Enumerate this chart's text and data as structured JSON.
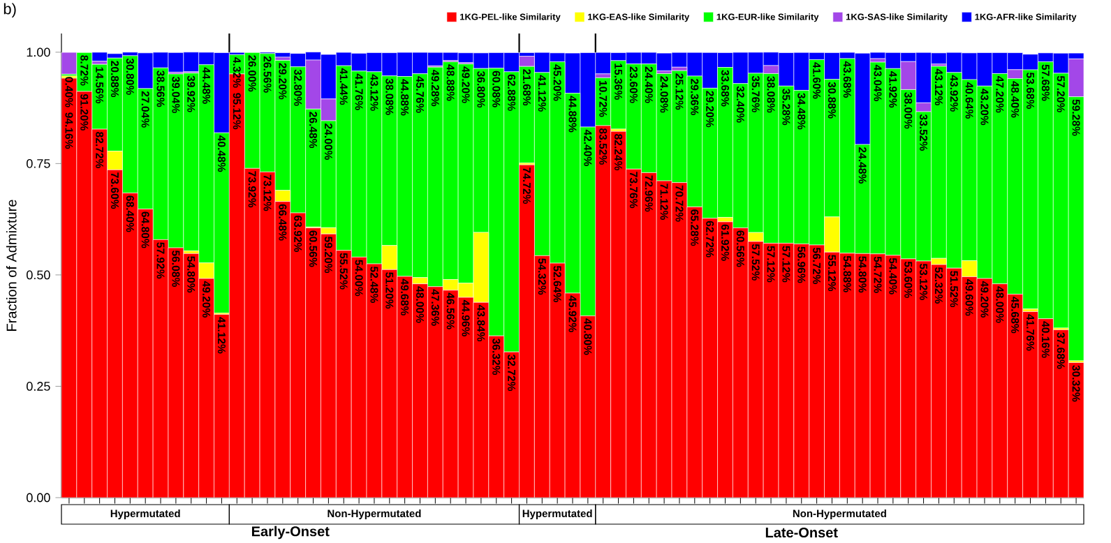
{
  "chart_data": {
    "type": "bar",
    "stacked": true,
    "ylabel": "Fraction of Admixture",
    "categories": [
      null,
      null,
      null,
      null,
      null,
      null,
      null,
      null,
      null,
      null,
      null,
      null,
      null,
      null,
      null,
      null,
      null,
      null,
      null,
      null,
      null,
      null,
      null,
      null,
      null,
      null,
      null,
      null,
      null,
      null,
      null,
      null,
      null,
      null,
      null,
      null,
      null,
      null,
      null,
      null,
      null,
      null,
      null,
      null,
      null,
      null,
      null,
      null,
      null,
      null,
      null,
      null,
      null,
      null,
      null,
      null,
      null,
      null,
      null,
      null,
      null,
      null,
      null,
      null,
      null,
      null,
      null
    ],
    "ylim": [
      0,
      1.042
    ],
    "yticks": [
      {
        "value": 0,
        "label": "0.00"
      },
      {
        "value": 0.25,
        "label": "0.25"
      },
      {
        "value": 0.5,
        "label": "0.50"
      },
      {
        "value": 0.75,
        "label": "0.75"
      },
      {
        "value": 1,
        "label": "1.00"
      }
    ],
    "legend": "top",
    "series": [
      {
        "name": "1KG-PEL-like Similarity",
        "color": "#ff0000",
        "values": [
          0.9416,
          0.912,
          0.8272,
          0.736,
          0.684,
          0.648,
          0.5792,
          0.5608,
          0.548,
          0.492,
          0.4112,
          0.9512,
          0.7392,
          0.7312,
          0.6648,
          0.6392,
          0.6056,
          0.592,
          0.5552,
          0.54,
          0.5248,
          0.512,
          0.4968,
          0.48,
          0.4736,
          0.4656,
          0.4496,
          0.4384,
          0.3632,
          0.3272,
          0.7472,
          0.5432,
          0.5264,
          0.4592,
          0.408,
          0.8352,
          0.8224,
          0.7376,
          0.7296,
          0.7112,
          0.7072,
          0.6528,
          0.6272,
          0.6192,
          0.6056,
          0.5752,
          0.5712,
          0.5712,
          0.5696,
          0.5672,
          0.5512,
          0.5488,
          0.548,
          0.5472,
          0.544,
          0.536,
          0.5312,
          0.5232,
          0.5152,
          0.496,
          0.492,
          0.48,
          0.4568,
          0.4176,
          0.4016,
          0.3768,
          0.3032
        ],
        "value_labels": [
          "94.16%",
          "91.20%",
          "82.72%",
          "73.60%",
          "68.40%",
          "64.80%",
          "57.92%",
          "56.08%",
          "54.80%",
          "49.20%",
          "41.12%",
          "95.12%",
          "73.92%",
          "73.12%",
          "66.48%",
          "63.92%",
          "60.56%",
          "59.20%",
          "55.52%",
          "54.00%",
          "52.48%",
          "51.20%",
          "49.68%",
          "48.00%",
          "47.36%",
          "46.56%",
          "44.96%",
          "43.84%",
          "36.32%",
          "32.72%",
          "74.72%",
          "54.32%",
          "52.64%",
          "45.92%",
          "40.80%",
          "83.52%",
          "82.24%",
          "73.76%",
          "72.96%",
          "71.12%",
          "70.72%",
          "65.28%",
          "62.72%",
          "61.92%",
          "60.56%",
          "57.52%",
          "57.12%",
          "57.12%",
          "56.96%",
          "56.72%",
          "55.12%",
          "54.88%",
          "54.80%",
          "54.72%",
          "54.40%",
          "53.60%",
          "53.12%",
          "52.32%",
          "51.52%",
          "49.60%",
          "49.20%",
          "48.00%",
          "45.68%",
          "41.76%",
          "40.16%",
          "37.68%",
          "30.32%"
        ]
      },
      {
        "name": "1KG-EAS-like Similarity",
        "color": "#ffff00",
        "values": [
          0.005,
          0,
          0,
          0.042,
          0,
          0,
          0,
          0,
          0.006,
          0.035,
          0.003,
          0,
          0,
          0,
          0.025,
          0,
          0.002,
          0.014,
          0,
          0,
          0,
          0.054,
          0,
          0.014,
          0,
          0.024,
          0.032,
          0.157,
          0,
          0,
          0.004,
          0,
          0,
          0,
          0,
          0,
          0.005,
          0,
          0,
          0,
          0,
          0,
          0,
          0.01,
          0,
          0.02,
          0,
          0,
          0,
          0,
          0.079,
          0,
          0,
          0,
          0,
          0,
          0,
          0.014,
          0,
          0.036,
          0,
          0,
          0,
          0.006,
          0,
          0.004,
          0.004
        ]
      },
      {
        "name": "1KG-EUR-like Similarity",
        "color": "#00ff00",
        "values": [
          0.004,
          0.0872,
          0.1456,
          0.2088,
          0.308,
          0.2704,
          0.3856,
          0.3904,
          0.3992,
          0.4448,
          0.4048,
          0.0432,
          0.26,
          0.2656,
          0.292,
          0.328,
          0.2648,
          0.24,
          0.4144,
          0.4176,
          0.4312,
          0.3808,
          0.4488,
          0.4576,
          0.4928,
          0.4888,
          0.492,
          0.368,
          0.6008,
          0.6288,
          0.2168,
          0.4112,
          0.452,
          0.4488,
          0.424,
          0.1072,
          0.1536,
          0.236,
          0.244,
          0.2408,
          0.2512,
          0.2936,
          0.292,
          0.3368,
          0.324,
          0.3576,
          0.3808,
          0.3528,
          0.3448,
          0.416,
          0.3088,
          0.4368,
          0.2448,
          0.4304,
          0.4192,
          0.38,
          0.3352,
          0.4312,
          0.4392,
          0.4064,
          0.432,
          0.472,
          0.484,
          0.5368,
          0.5768,
          0.572,
          0.5928
        ],
        "value_labels": [
          "0.40%",
          "8.72%",
          "14.56%",
          "20.88%",
          "30.80%",
          "27.04%",
          "38.56%",
          "39.04%",
          "39.92%",
          "44.48%",
          "40.48%",
          "4.32%",
          "26.00%",
          "26.56%",
          "29.20%",
          "32.80%",
          "26.48%",
          "24.00%",
          "41.44%",
          "41.76%",
          "43.12%",
          "38.08%",
          "44.88%",
          "45.76%",
          "49.28%",
          "48.88%",
          "49.20%",
          "36.80%",
          "60.08%",
          "62.88%",
          "21.68%",
          "41.12%",
          "45.20%",
          "44.88%",
          "42.40%",
          "10.72%",
          "15.36%",
          "23.60%",
          "24.40%",
          "24.08%",
          "25.12%",
          "29.36%",
          "29.20%",
          "33.68%",
          "32.40%",
          "35.76%",
          "38.08%",
          "35.28%",
          "34.48%",
          "41.60%",
          "30.88%",
          "43.68%",
          "24.48%",
          "43.04%",
          "41.92%",
          "38.00%",
          "33.52%",
          "43.12%",
          "43.92%",
          "40.64%",
          "43.20%",
          "47.20%",
          "48.40%",
          "53.68%",
          "57.68%",
          "57.20%",
          "59.28%"
        ]
      },
      {
        "name": "1KG-SAS-like Similarity",
        "color": "#a347e8",
        "values": [
          0.049,
          0,
          0.007,
          0,
          0,
          0,
          0,
          0.004,
          0.003,
          0,
          0,
          0,
          0,
          0,
          0.007,
          0,
          0.11,
          0.049,
          0,
          0,
          0,
          0,
          0,
          0,
          0.003,
          0.003,
          0.003,
          0,
          0,
          0,
          0.023,
          0,
          0,
          0,
          0,
          0.009,
          0,
          0,
          0,
          0.006,
          0.008,
          0,
          0,
          0,
          0,
          0,
          0.018,
          0,
          0,
          0,
          0,
          0,
          0,
          0.008,
          0,
          0.063,
          0.02,
          0.005,
          0,
          0,
          0,
          0,
          0.02,
          0,
          0,
          0,
          0.085
        ]
      },
      {
        "name": "1KG-AFR-like Similarity",
        "color": "#0000ff",
        "values": [
          0,
          0,
          0.02,
          0.01,
          0.008,
          0.08,
          0.035,
          0.044,
          0.044,
          0.028,
          0.18,
          0.005,
          0,
          0.003,
          0.01,
          0.03,
          0.018,
          0.1,
          0.03,
          0.04,
          0.043,
          0.052,
          0.054,
          0.048,
          0.03,
          0.018,
          0.022,
          0.035,
          0.035,
          0.043,
          0.008,
          0.045,
          0.02,
          0.09,
          0.167,
          0.048,
          0.018,
          0.026,
          0.026,
          0.04,
          0.033,
          0.053,
          0.08,
          0.033,
          0.07,
          0.047,
          0.03,
          0.075,
          0.085,
          0.016,
          0.06,
          0.014,
          0.205,
          0.014,
          0.036,
          0.02,
          0.113,
          0.025,
          0.045,
          0.06,
          0.075,
          0.047,
          0.038,
          0.035,
          0.02,
          0.045,
          0.013
        ]
      }
    ],
    "annotations": [
      "b)",
      "Hypermutated",
      "Non-Hypermutated",
      "Hypermutated",
      "Non-Hypermutated",
      "Early-Onset",
      "Late-Onset"
    ]
  }
}
